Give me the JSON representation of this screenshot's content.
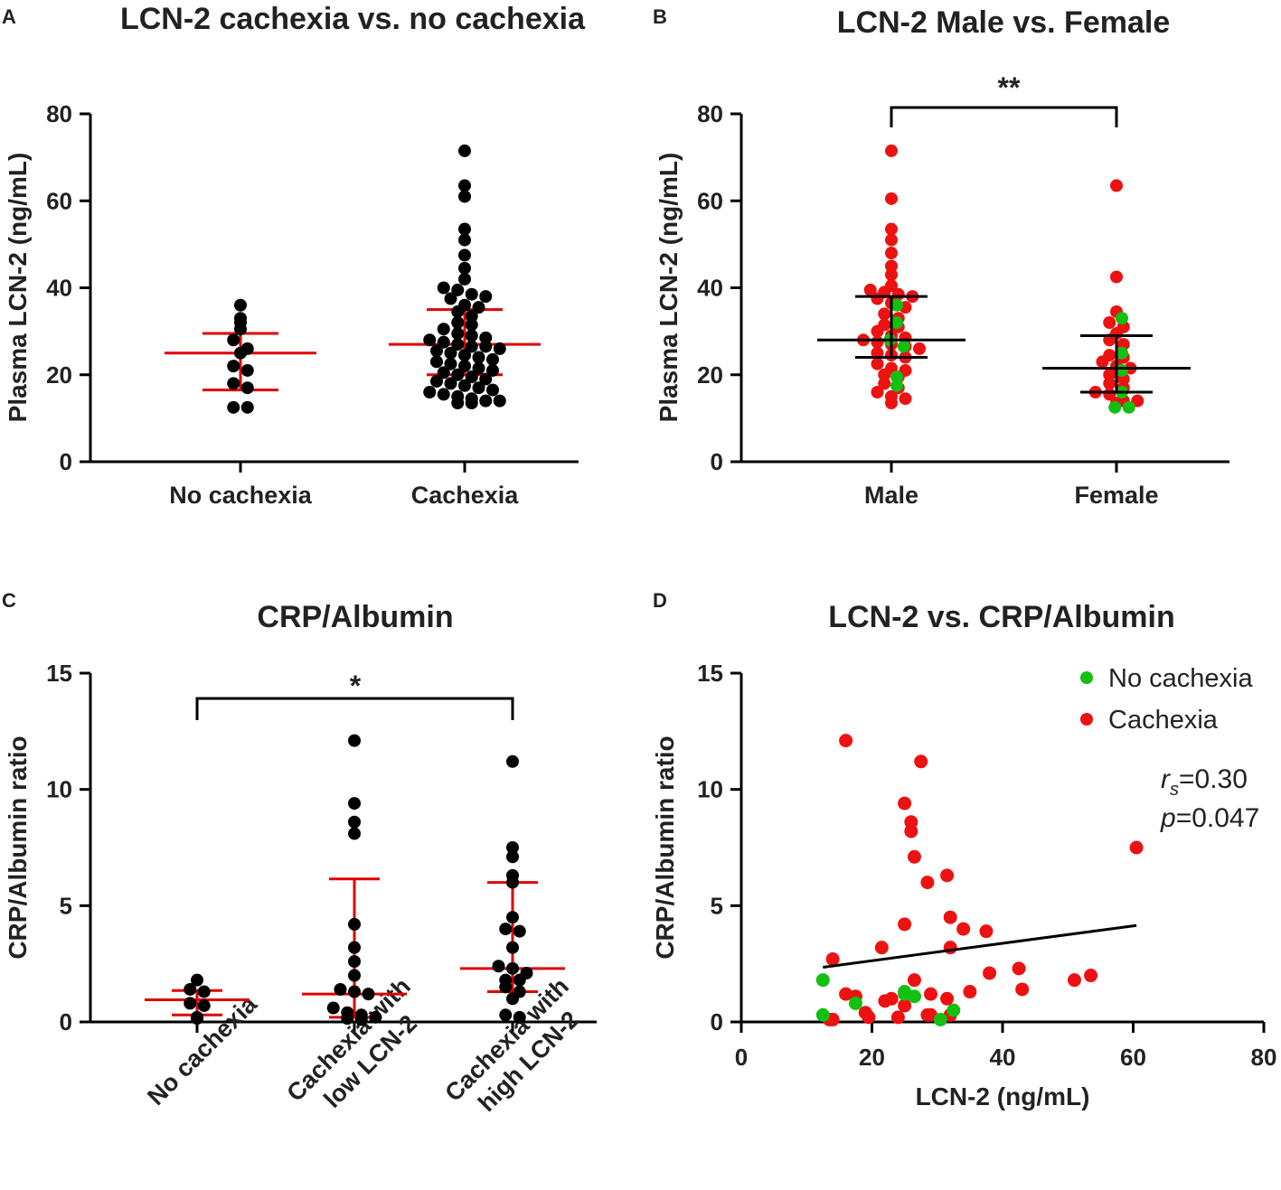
{
  "chart_data": [
    {
      "panel": "A",
      "type": "scatter",
      "title": "LCN-2 cachexia vs. no cachexia",
      "ylabel": "Plasma LCN-2 (ng/mL)",
      "ylim": [
        0,
        80
      ],
      "yticks": [
        0,
        20,
        40,
        60,
        80
      ],
      "categories": [
        "No cachexia",
        "Cachexia"
      ],
      "point_color": "#000000",
      "summary_color": "#e00000",
      "points": [
        {
          "group": 0,
          "values": [
            36,
            33,
            32,
            30.5,
            28,
            26,
            25,
            22,
            21,
            18,
            17,
            12.5,
            12.5
          ]
        },
        {
          "group": 1,
          "values": [
            71.5,
            63.5,
            61,
            53.5,
            51,
            47.5,
            44.5,
            42,
            40,
            39.5,
            38.5,
            38,
            37.5,
            36,
            35.5,
            34.5,
            33.5,
            32,
            31.5,
            30.5,
            29.5,
            29,
            28.5,
            28,
            27.5,
            27,
            26.5,
            26.5,
            26,
            25.5,
            25,
            24.5,
            24,
            23.5,
            23,
            22.5,
            22,
            21.5,
            21,
            20.5,
            20,
            19.5,
            19,
            18.5,
            18,
            17.5,
            17,
            16.5,
            16,
            15.5,
            15,
            14.5,
            14,
            14,
            13.5,
            13.5
          ]
        }
      ],
      "summary": [
        {
          "group": 0,
          "median": 25,
          "q1": 16.5,
          "q3": 29.5
        },
        {
          "group": 1,
          "median": 27,
          "q1": 20,
          "q3": 35
        }
      ]
    },
    {
      "panel": "B",
      "type": "scatter",
      "title": "LCN-2 Male vs. Female",
      "ylabel": "Plasma LCN-2 (ng/mL)",
      "ylim": [
        0,
        80
      ],
      "yticks": [
        0,
        20,
        40,
        60,
        80
      ],
      "categories": [
        "Male",
        "Female"
      ],
      "significance": "**",
      "summary_color": "#000000",
      "series": [
        {
          "name": "Cachexia",
          "color": "#ee1111",
          "points": [
            {
              "group": 0,
              "values": [
                71.5,
                60.5,
                53.5,
                51,
                48,
                45,
                43,
                40.5,
                39.5,
                39,
                38.5,
                38,
                37.5,
                36.5,
                35.5,
                34,
                33,
                31.5,
                31,
                30,
                29,
                28.5,
                28,
                27.5,
                27,
                26.5,
                26,
                25,
                24.5,
                24,
                22.5,
                21.5,
                21,
                20,
                19.5,
                18,
                17,
                16,
                15,
                14.5,
                13.5
              ]
            },
            {
              "group": 1,
              "values": [
                63.5,
                42.5,
                34.5,
                32,
                31,
                29.5,
                28,
                27,
                24.5,
                24,
                23,
                22,
                21.5,
                20,
                19,
                18,
                17,
                16,
                15.5,
                14,
                14,
                13.5
              ]
            }
          ]
        },
        {
          "name": "No cachexia",
          "color": "#11c011",
          "points": [
            {
              "group": 0,
              "values": [
                36,
                32,
                28,
                26.5,
                19.5,
                17.5
              ]
            },
            {
              "group": 1,
              "values": [
                33,
                25,
                21,
                16,
                12.5,
                12.5
              ]
            }
          ]
        }
      ],
      "summary": [
        {
          "group": 0,
          "median": 28,
          "q1": 24,
          "q3": 38
        },
        {
          "group": 1,
          "median": 21.5,
          "q1": 16,
          "q3": 29
        }
      ]
    },
    {
      "panel": "C",
      "type": "scatter",
      "title": "CRP/Albumin",
      "ylabel": "CRP/Albumin ratio",
      "ylim": [
        0,
        15
      ],
      "yticks": [
        0,
        5,
        10,
        15
      ],
      "categories": [
        "No cachexia",
        "Cachexia with low LCN-2",
        "Cachexia with high LCN-2"
      ],
      "category_lines": [
        [
          "No cachexia"
        ],
        [
          "Cachexia with",
          "low LCN-2"
        ],
        [
          "Cachexia with",
          "high LCN-2"
        ]
      ],
      "significance": "*",
      "point_color": "#000000",
      "summary_color": "#e00000",
      "points": [
        {
          "group": 0,
          "values": [
            1.8,
            1.4,
            1.3,
            0.8,
            0.7,
            0.2,
            0.15
          ]
        },
        {
          "group": 1,
          "values": [
            12.1,
            9.4,
            8.6,
            8.1,
            4.2,
            3.2,
            2.6,
            2.0,
            1.4,
            1.3,
            1.2,
            0.6,
            0.4,
            0.3,
            0.2,
            0.15,
            0.1
          ]
        },
        {
          "group": 2,
          "values": [
            11.2,
            7.5,
            7.1,
            6.3,
            6.0,
            4.5,
            4.0,
            3.9,
            3.2,
            2.4,
            2.3,
            2.1,
            1.8,
            1.8,
            1.5,
            1.3,
            1.0,
            0.3,
            0.2
          ]
        }
      ],
      "summary": [
        {
          "group": 0,
          "median": 0.95,
          "q1": 0.3,
          "q3": 1.35
        },
        {
          "group": 1,
          "median": 1.2,
          "q1": 0.2,
          "q3": 6.15
        },
        {
          "group": 2,
          "median": 2.3,
          "q1": 1.3,
          "q3": 6.0
        }
      ]
    },
    {
      "panel": "D",
      "type": "scatter",
      "title": "LCN-2 vs. CRP/Albumin",
      "xlabel": "LCN-2 (ng/mL)",
      "ylabel": "CRP/Albumin ratio",
      "xlim": [
        0,
        80
      ],
      "ylim": [
        0,
        15
      ],
      "xticks": [
        0,
        20,
        40,
        60,
        80
      ],
      "yticks": [
        0,
        5,
        10,
        15
      ],
      "legend_position": "top-right",
      "series": [
        {
          "name": "No cachexia",
          "color": "#11c011",
          "x": [
            12.5,
            12.5,
            17.5,
            25,
            25,
            26.5,
            30.5,
            32.5
          ],
          "y": [
            1.8,
            0.3,
            0.8,
            1.3,
            1.2,
            1.1,
            0.1,
            0.5
          ]
        },
        {
          "name": "Cachexia",
          "color": "#ee1111",
          "x": [
            16,
            27.5,
            25,
            26,
            26,
            26.5,
            28.5,
            31.5,
            60.5,
            25,
            32,
            34,
            37.5,
            32,
            21.5,
            14,
            26.5,
            38,
            42.5,
            53.5,
            51,
            16,
            17.5,
            19,
            43,
            35,
            23,
            29,
            13.5,
            14,
            19.5,
            24,
            29,
            32,
            31.5,
            28.5,
            25,
            22
          ],
          "y": [
            12.1,
            11.2,
            9.4,
            8.6,
            8.2,
            7.1,
            6.0,
            6.3,
            7.5,
            4.2,
            4.5,
            4.0,
            3.9,
            3.2,
            3.2,
            2.7,
            1.8,
            2.1,
            2.3,
            2.0,
            1.8,
            1.2,
            1.1,
            0.4,
            1.4,
            1.3,
            1.0,
            1.2,
            0.1,
            0.1,
            0.2,
            0.2,
            0.3,
            0.3,
            1.0,
            0.3,
            0.7,
            0.9
          ]
        }
      ],
      "trendline": {
        "x": [
          12.5,
          60.5
        ],
        "y": [
          2.35,
          4.15
        ]
      },
      "annotation": {
        "rs_symbol": "r",
        "rs_sub": "s",
        "rs_value": "=0.30",
        "p_symbol": "p",
        "p_value": "=0.047"
      }
    }
  ]
}
